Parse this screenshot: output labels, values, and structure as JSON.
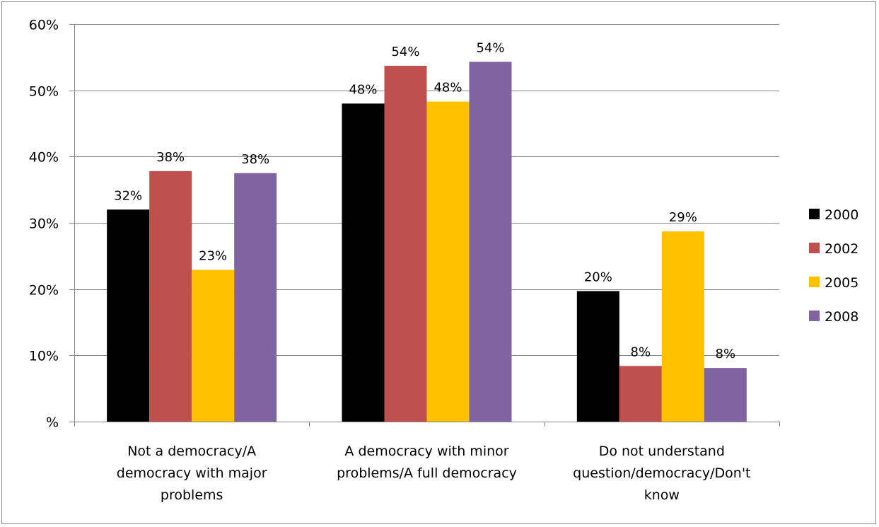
{
  "chart_data": {
    "type": "bar",
    "categories": [
      [
        "Not a democracy/A",
        "democracy with major",
        "problems"
      ],
      [
        "A democracy with minor",
        "problems/A full democracy"
      ],
      [
        "Do not understand",
        "question/democracy/Don't",
        "know"
      ]
    ],
    "series": [
      {
        "name": "2000",
        "color": "#000000",
        "values": [
          32,
          48,
          19.7
        ],
        "labels": [
          "32%",
          "48%",
          "20%"
        ]
      },
      {
        "name": "2002",
        "color": "#c0504d",
        "values": [
          37.8,
          53.7,
          8.4
        ],
        "labels": [
          "38%",
          "54%",
          "8%"
        ]
      },
      {
        "name": "2005",
        "color": "#ffc000",
        "values": [
          22.9,
          48.3,
          28.7
        ],
        "labels": [
          "23%",
          "48%",
          "29%"
        ]
      },
      {
        "name": "2008",
        "color": "#8064a2",
        "values": [
          37.5,
          54.3,
          8.1
        ],
        "labels": [
          "38%",
          "54%",
          "8%"
        ]
      }
    ],
    "y_ticks": [
      "%",
      "10%",
      "20%",
      "30%",
      "40%",
      "50%",
      "60%"
    ],
    "ylim": [
      0,
      60
    ],
    "grid": true,
    "legend_position": "right"
  }
}
